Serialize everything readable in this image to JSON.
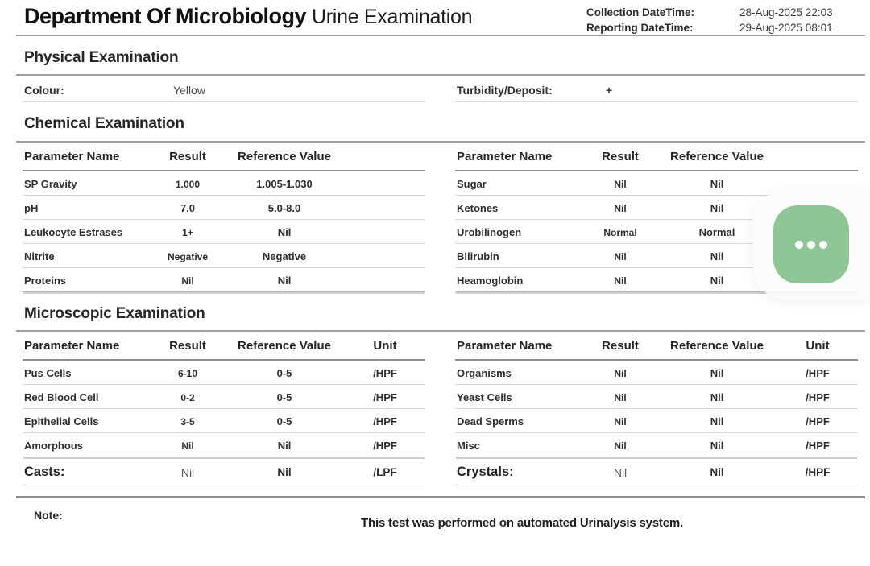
{
  "header": {
    "department": "Department Of Microbiology",
    "exam_title": "Urine Examination",
    "collection_label": "Collection DateTime:",
    "collection_value": "28-Aug-2025 22:03",
    "reporting_label": "Reporting DateTime:",
    "reporting_value": "29-Aug-2025 08:01"
  },
  "physical": {
    "heading": "Physical Examination",
    "items": [
      {
        "label": "Colour:",
        "value": "Yellow"
      },
      {
        "label": "Turbidity/Deposit:",
        "value": "+"
      }
    ]
  },
  "chemical": {
    "heading": "Chemical Examination",
    "columns": [
      "Parameter Name",
      "Result",
      "Reference Value"
    ],
    "left_rows": [
      {
        "name": "SP Gravity",
        "result": "1.000",
        "reference": "1.005-1.030"
      },
      {
        "name": "pH",
        "result": "7.0",
        "reference": "5.0-8.0"
      },
      {
        "name": "Leukocyte Estrases",
        "result": "1+",
        "reference": "Nil"
      },
      {
        "name": "Nitrite",
        "result": "Negative",
        "reference": "Negative"
      },
      {
        "name": "Proteins",
        "result": "Nil",
        "reference": "Nil"
      }
    ],
    "right_rows": [
      {
        "name": "Sugar",
        "result": "Nil",
        "reference": "Nil"
      },
      {
        "name": "Ketones",
        "result": "Nil",
        "reference": "Nil"
      },
      {
        "name": "Urobilinogen",
        "result": "Normal",
        "reference": "Normal"
      },
      {
        "name": "Bilirubin",
        "result": "Nil",
        "reference": "Nil"
      },
      {
        "name": "Heamoglobin",
        "result": "Nil",
        "reference": "Nil"
      }
    ]
  },
  "microscopic": {
    "heading": "Microscopic Examination",
    "columns": [
      "Parameter Name",
      "Result",
      "Reference Value",
      "Unit"
    ],
    "left_rows": [
      {
        "name": "Pus Cells",
        "result": "6-10",
        "reference": "0-5",
        "unit": "/HPF"
      },
      {
        "name": "Red Blood Cell",
        "result": "0-2",
        "reference": "0-5",
        "unit": "/HPF"
      },
      {
        "name": "Epithelial Cells",
        "result": "3-5",
        "reference": "0-5",
        "unit": "/HPF"
      },
      {
        "name": "Amorphous",
        "result": "Nil",
        "reference": "Nil",
        "unit": "/HPF"
      }
    ],
    "left_summary": {
      "name": "Casts:",
      "result": "Nil",
      "reference": "Nil",
      "unit": "/LPF"
    },
    "right_rows": [
      {
        "name": "Organisms",
        "result": "Nil",
        "reference": "Nil",
        "unit": "/HPF"
      },
      {
        "name": "Yeast Cells",
        "result": "Nil",
        "reference": "Nil",
        "unit": "/HPF"
      },
      {
        "name": "Dead Sperms",
        "result": "Nil",
        "reference": "Nil",
        "unit": "/HPF"
      },
      {
        "name": "Misc",
        "result": "Nil",
        "reference": "Nil",
        "unit": "/HPF"
      }
    ],
    "right_summary": {
      "name": "Crystals:",
      "result": "Nil",
      "reference": "Nil",
      "unit": "/HPF"
    }
  },
  "note": {
    "label": "Note:",
    "text": "This test was performed on automated Urinalysis system."
  },
  "fab": {
    "icon": "more-options-ellipsis-icon",
    "color": "#8ec795"
  }
}
